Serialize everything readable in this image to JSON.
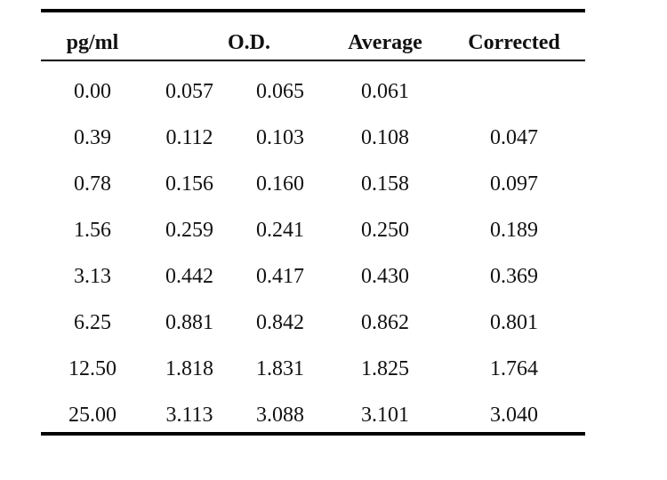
{
  "table": {
    "headers": {
      "concentration": "pg/ml",
      "od": "O.D.",
      "average": "Average",
      "corrected": "Corrected"
    },
    "rows": [
      {
        "conc": "0.00",
        "od1": "0.057",
        "od2": "0.065",
        "avg": "0.061",
        "corr": ""
      },
      {
        "conc": "0.39",
        "od1": "0.112",
        "od2": "0.103",
        "avg": "0.108",
        "corr": "0.047"
      },
      {
        "conc": "0.78",
        "od1": "0.156",
        "od2": "0.160",
        "avg": "0.158",
        "corr": "0.097"
      },
      {
        "conc": "1.56",
        "od1": "0.259",
        "od2": "0.241",
        "avg": "0.250",
        "corr": "0.189"
      },
      {
        "conc": "3.13",
        "od1": "0.442",
        "od2": "0.417",
        "avg": "0.430",
        "corr": "0.369"
      },
      {
        "conc": "6.25",
        "od1": "0.881",
        "od2": "0.842",
        "avg": "0.862",
        "corr": "0.801"
      },
      {
        "conc": "12.50",
        "od1": "1.818",
        "od2": "1.831",
        "avg": "1.825",
        "corr": "1.764"
      },
      {
        "conc": "25.00",
        "od1": "3.113",
        "od2": "3.088",
        "avg": "3.101",
        "corr": "3.040"
      }
    ]
  }
}
